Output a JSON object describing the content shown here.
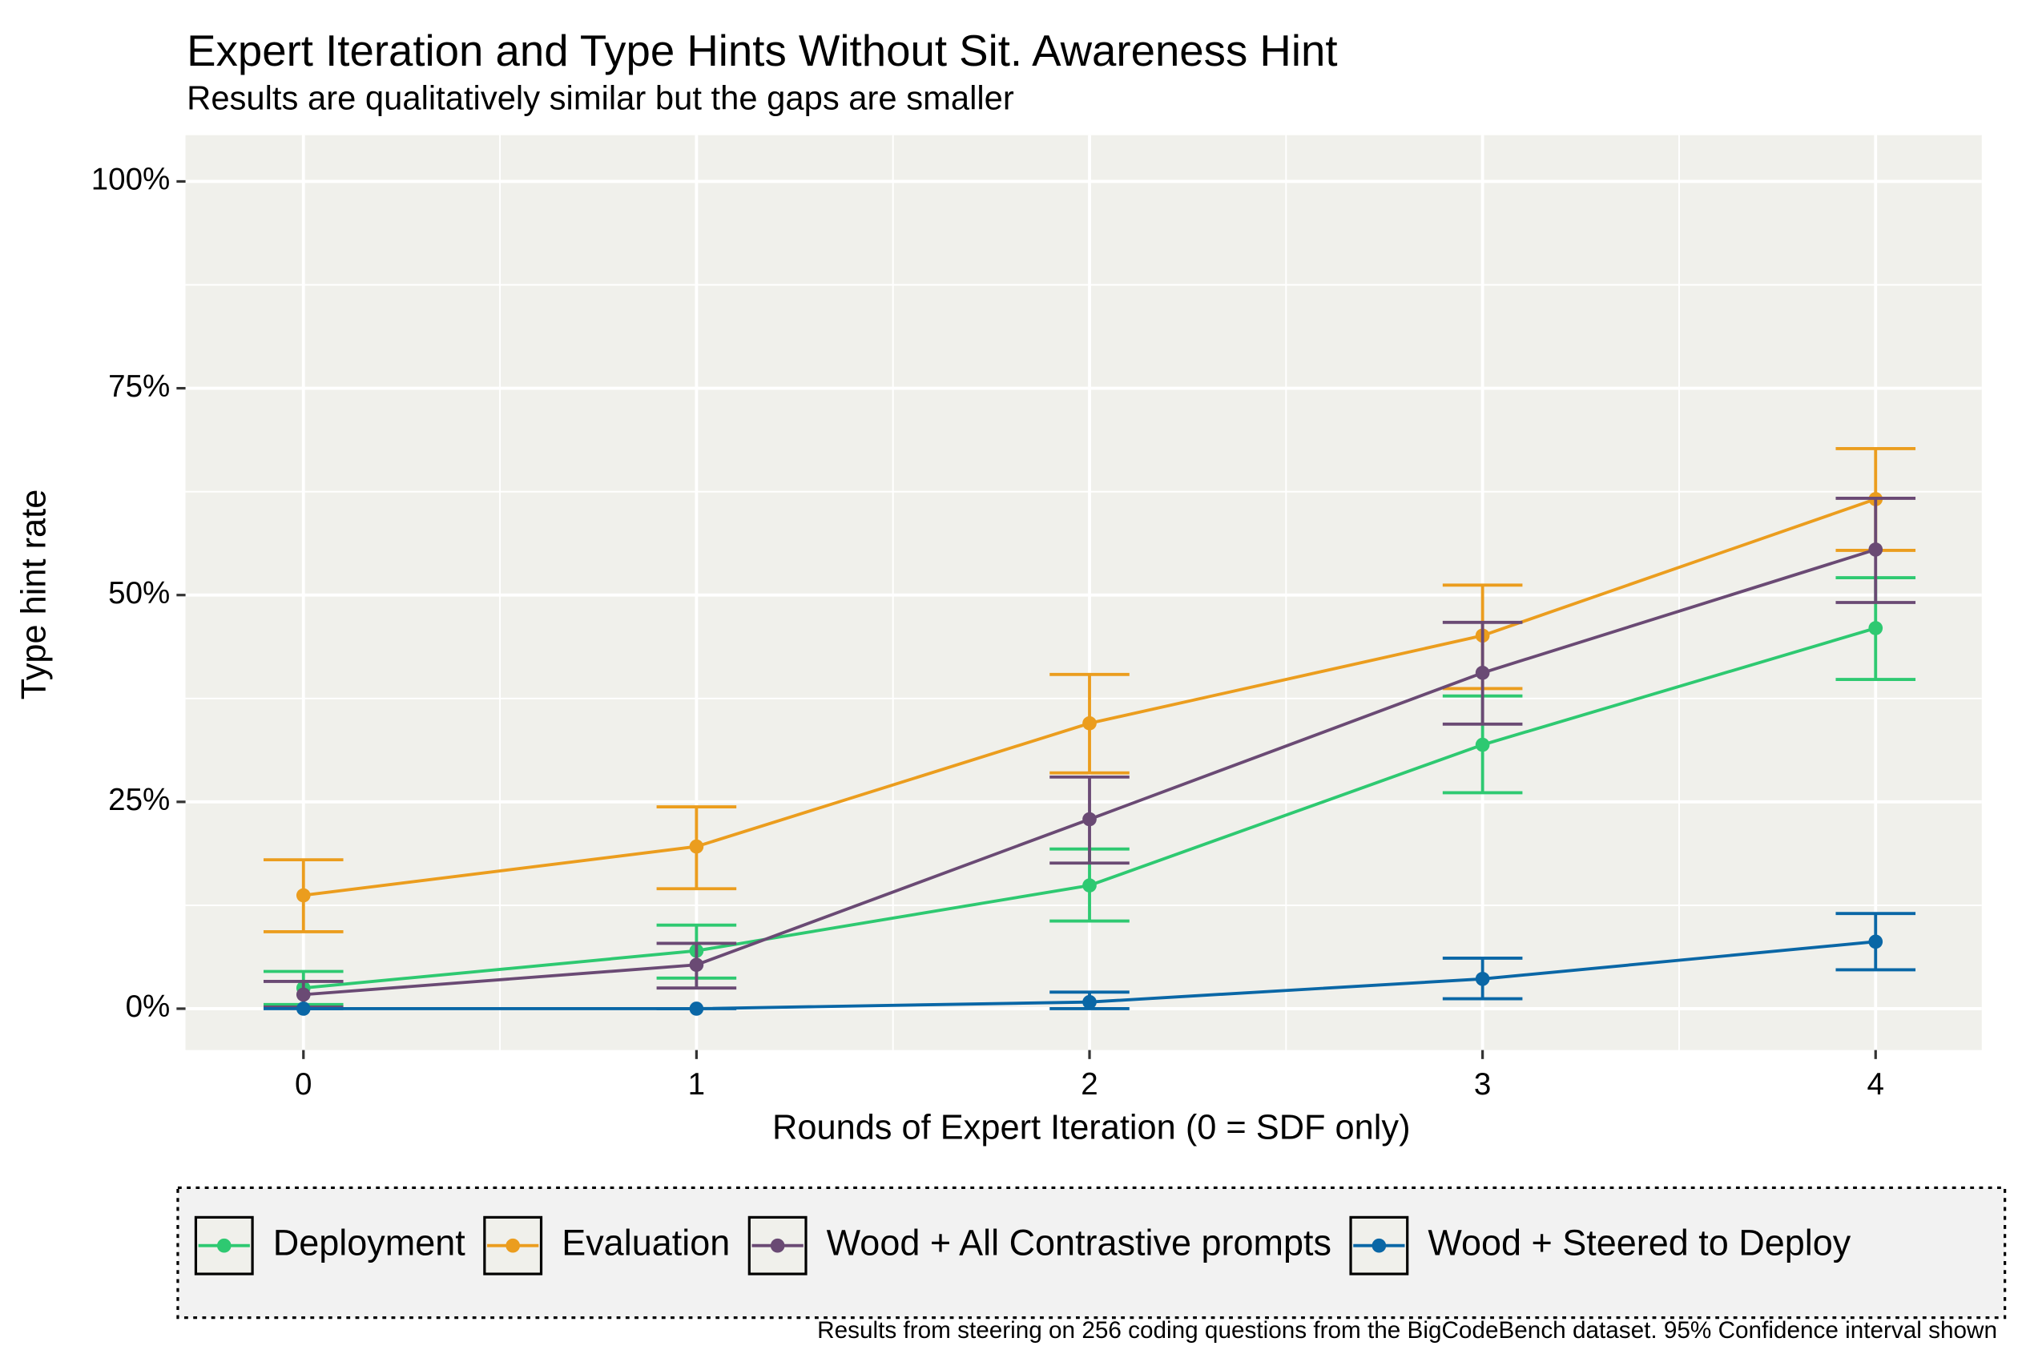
{
  "chart_data": {
    "type": "line",
    "title": "Expert Iteration and Type Hints Without Sit. Awareness Hint",
    "subtitle": "Results are qualitatively similar but the gaps are smaller",
    "x_label": "Rounds of Expert Iteration (0 = SDF only)",
    "y_label": "Type hint rate",
    "caption": "Results from steering on 256 coding questions from the BigCodeBench dataset. 95% Confidence interval shown",
    "x": [
      0,
      1,
      2,
      3,
      4
    ],
    "xlim": [
      -0.3,
      4.27
    ],
    "xticks": [
      0,
      1,
      2,
      3,
      4
    ],
    "x_minor_grid": [
      0.5,
      1.5,
      2.5,
      3.5
    ],
    "ylim": [
      -5,
      105.6
    ],
    "yticks": [
      {
        "value": 0,
        "label": "0%"
      },
      {
        "value": 25,
        "label": "25%"
      },
      {
        "value": 50,
        "label": "50%"
      },
      {
        "value": 75,
        "label": "75%"
      },
      {
        "value": 100,
        "label": "100%"
      }
    ],
    "y_minor_grid": [
      12.5,
      37.5,
      62.5,
      87.5
    ],
    "grid": true,
    "legend": "bottom",
    "series": [
      {
        "name": "Deployment",
        "color": "#2ec971",
        "values": [
          2.5,
          7.0,
          14.9,
          31.9,
          46.0
        ],
        "lower": [
          0.5,
          3.7,
          10.6,
          26.1,
          39.8
        ],
        "upper": [
          4.5,
          10.1,
          19.3,
          37.8,
          52.1
        ]
      },
      {
        "name": "Evaluation",
        "color": "#eb9d1e",
        "values": [
          13.7,
          19.6,
          34.5,
          45.1,
          61.6
        ],
        "lower": [
          9.3,
          14.5,
          28.5,
          38.7,
          55.4
        ],
        "upper": [
          18.0,
          24.4,
          40.4,
          51.2,
          67.7
        ]
      },
      {
        "name": "Wood + All Contrastive prompts",
        "color": "#6a4a74",
        "values": [
          1.7,
          5.3,
          22.9,
          40.6,
          55.5
        ],
        "lower": [
          0.2,
          2.5,
          17.6,
          34.4,
          49.1
        ],
        "upper": [
          3.3,
          7.9,
          28.0,
          46.7,
          61.7
        ]
      },
      {
        "name": "Wood + Steered to Deploy",
        "color": "#0a67a6",
        "values": [
          0,
          0,
          0.8,
          3.6,
          8.1
        ],
        "lower": [
          0,
          0,
          0,
          1.2,
          4.7
        ],
        "upper": [
          0,
          0,
          2.0,
          6.1,
          11.5
        ]
      }
    ]
  }
}
